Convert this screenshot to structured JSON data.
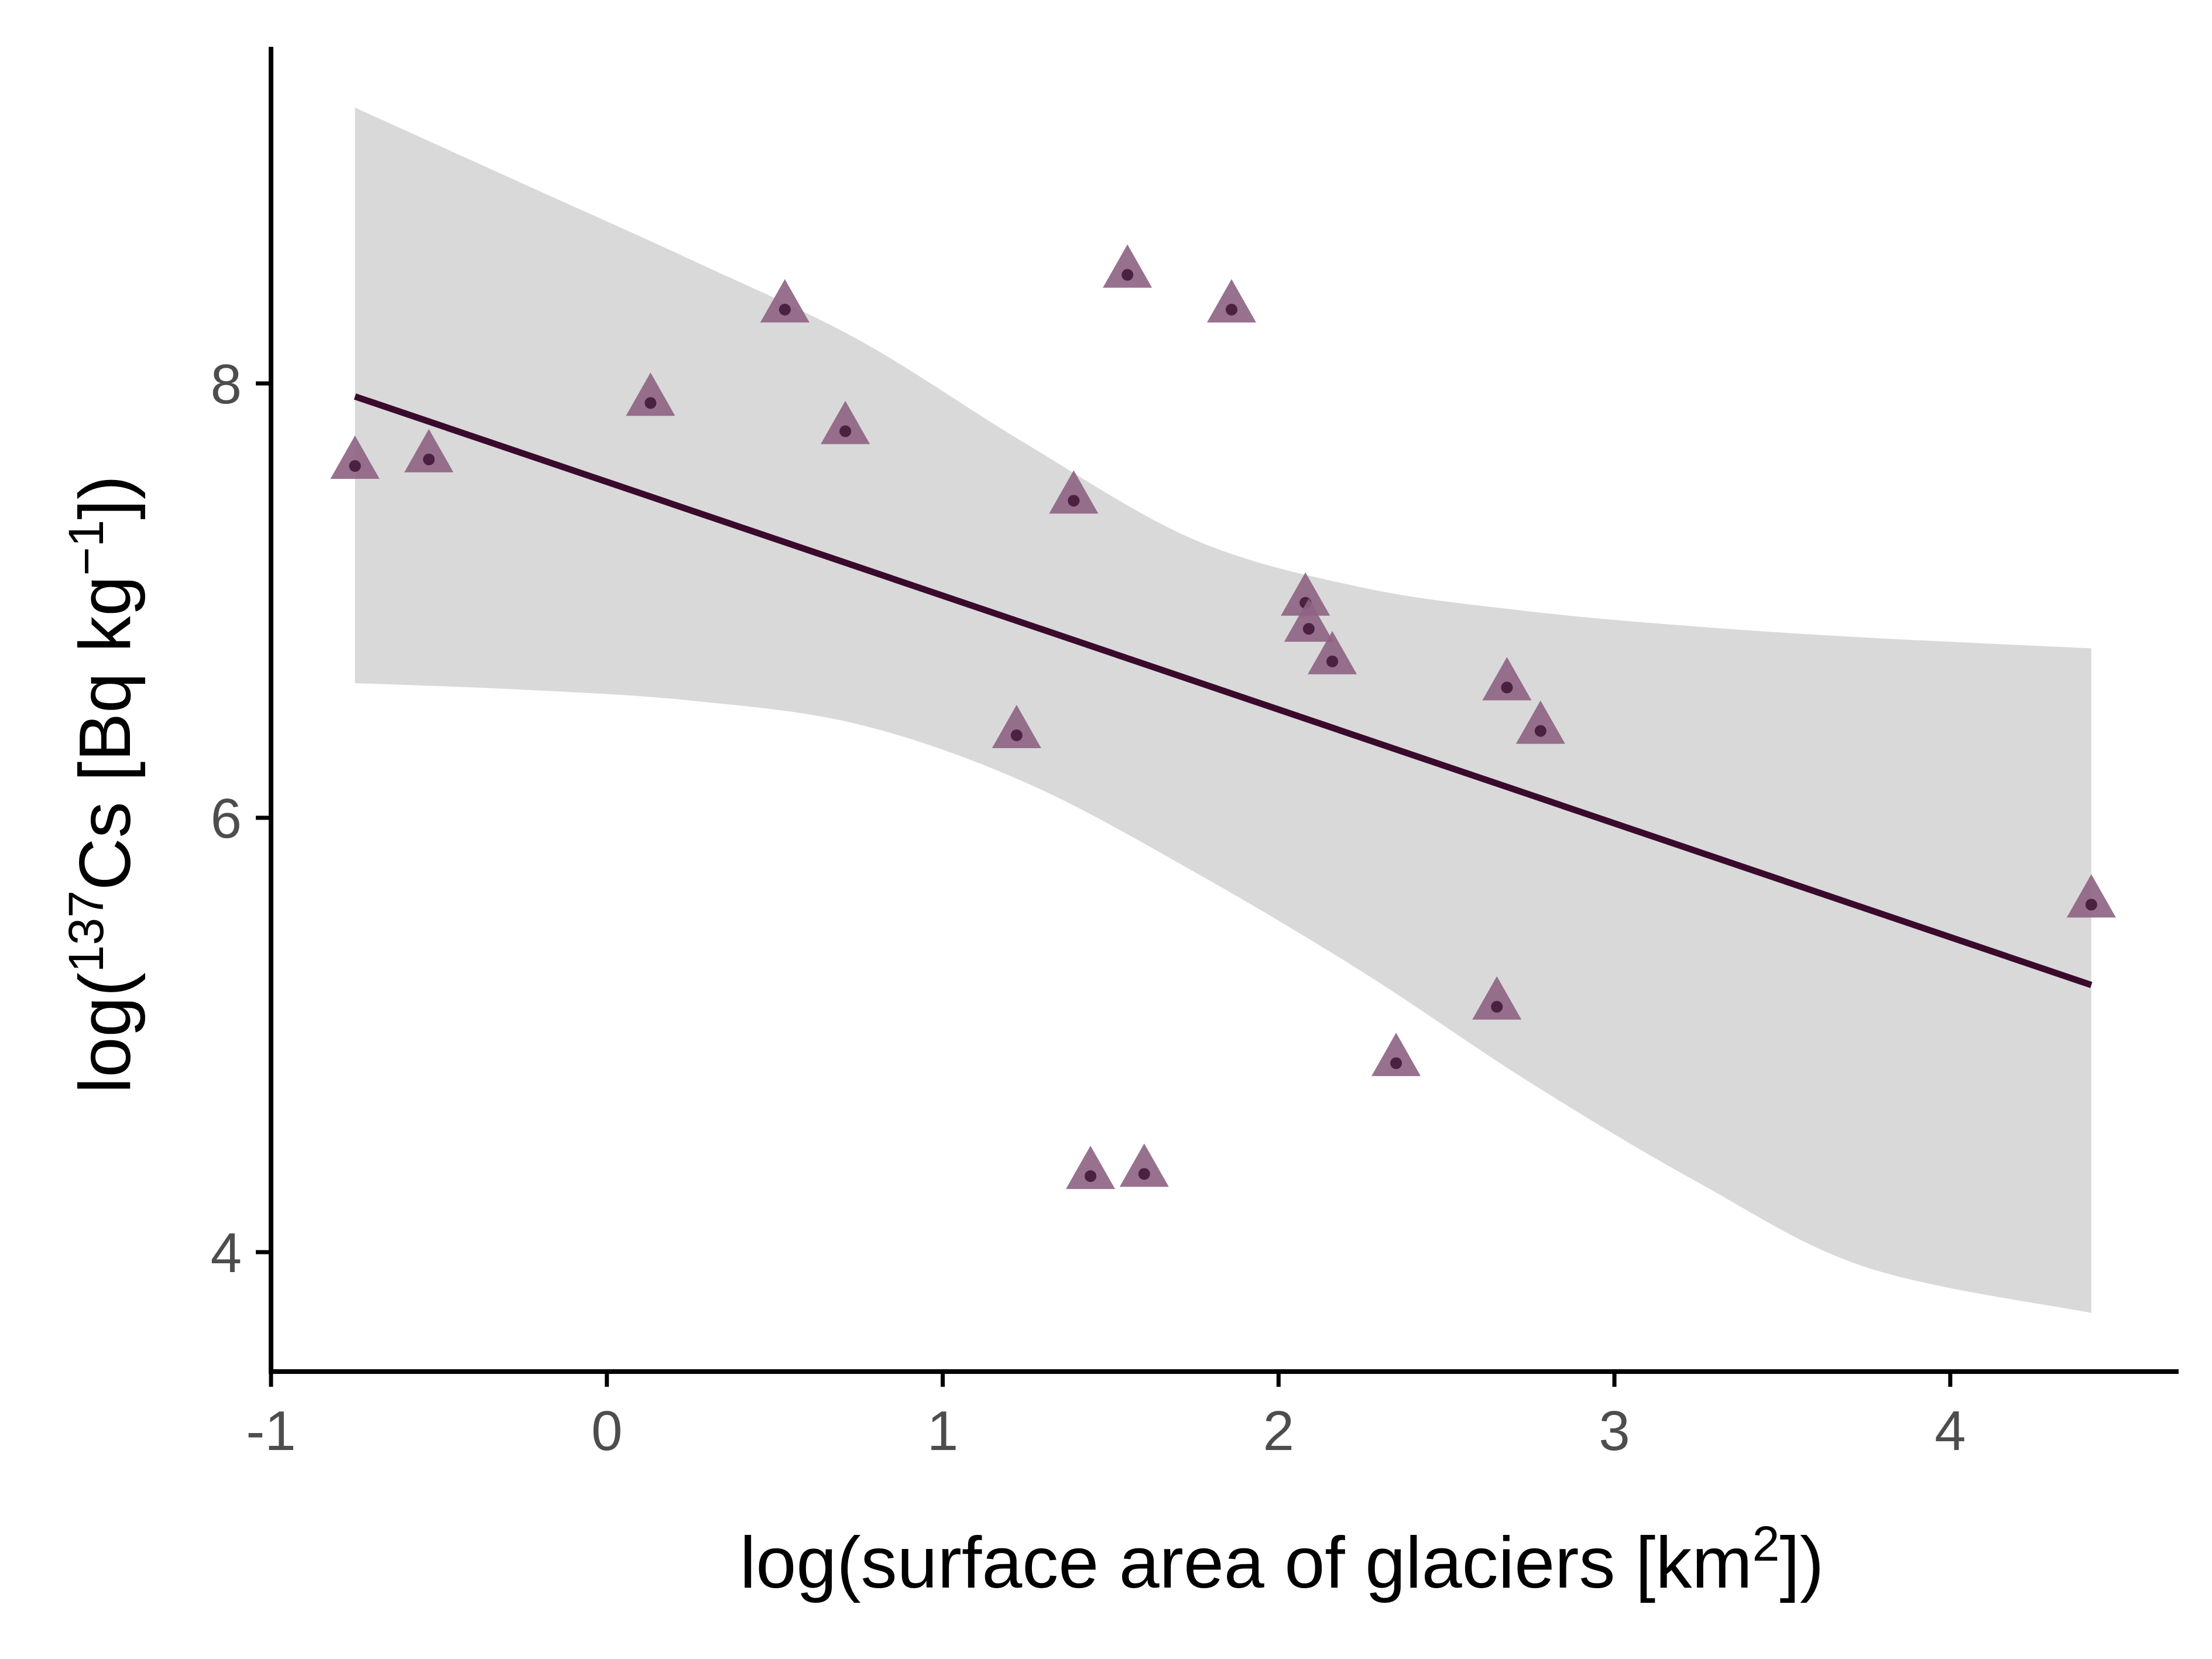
{
  "chart_data": {
    "type": "scatter",
    "title": "",
    "xlabel": {
      "main": "log(surface area of glaciers [km",
      "sup": "2",
      "tail": "])"
    },
    "ylabel": {
      "pre": "log(",
      "sup": "137",
      "mid": "Cs [Bq kg",
      "sup2": "−1",
      "tail": "])"
    },
    "xlim": [
      -1,
      4.68
    ],
    "ylim": [
      3.45,
      9.55
    ],
    "x_ticks": [
      -1,
      0,
      1,
      2,
      3,
      4
    ],
    "x_tick_labels": [
      "-1",
      "0",
      "1",
      "2",
      "3",
      "4"
    ],
    "y_ticks": [
      4,
      6,
      8
    ],
    "y_tick_labels": [
      "4",
      "6",
      "8"
    ],
    "grid": false,
    "legend": "none",
    "points": [
      {
        "x": -0.75,
        "y": 7.62
      },
      {
        "x": -0.53,
        "y": 7.65
      },
      {
        "x": 0.13,
        "y": 7.91
      },
      {
        "x": 0.53,
        "y": 8.34
      },
      {
        "x": 0.71,
        "y": 7.78
      },
      {
        "x": 1.22,
        "y": 6.38
      },
      {
        "x": 1.39,
        "y": 7.46
      },
      {
        "x": 1.44,
        "y": 4.35
      },
      {
        "x": 1.55,
        "y": 8.5
      },
      {
        "x": 1.6,
        "y": 4.36
      },
      {
        "x": 1.86,
        "y": 8.34
      },
      {
        "x": 2.08,
        "y": 6.99
      },
      {
        "x": 2.09,
        "y": 6.87
      },
      {
        "x": 2.16,
        "y": 6.72
      },
      {
        "x": 2.35,
        "y": 4.87
      },
      {
        "x": 2.65,
        "y": 5.13
      },
      {
        "x": 2.68,
        "y": 6.6
      },
      {
        "x": 2.78,
        "y": 6.4
      },
      {
        "x": 4.42,
        "y": 5.6
      }
    ],
    "regression": {
      "x0": -0.75,
      "y0": 7.94,
      "x1": 4.42,
      "y1": 5.23
    },
    "confidence_band": {
      "x": [
        -0.75,
        -0.25,
        0.25,
        0.75,
        1.25,
        1.75,
        2.25,
        2.75,
        3.25,
        3.75,
        4.42
      ],
      "upper": [
        9.27,
        8.92,
        8.57,
        8.2,
        7.72,
        7.28,
        7.06,
        6.95,
        6.88,
        6.83,
        6.78
      ],
      "lower": [
        6.62,
        6.59,
        6.54,
        6.43,
        6.16,
        5.75,
        5.29,
        4.78,
        4.32,
        3.93,
        3.72
      ]
    },
    "colors": {
      "point_fill": "#8d6282",
      "point_dot": "#4a2140",
      "line": "#3a0a2c",
      "band": "#d9d9d9",
      "axis": "#000000",
      "tick_label": "#4d4d4d"
    }
  }
}
